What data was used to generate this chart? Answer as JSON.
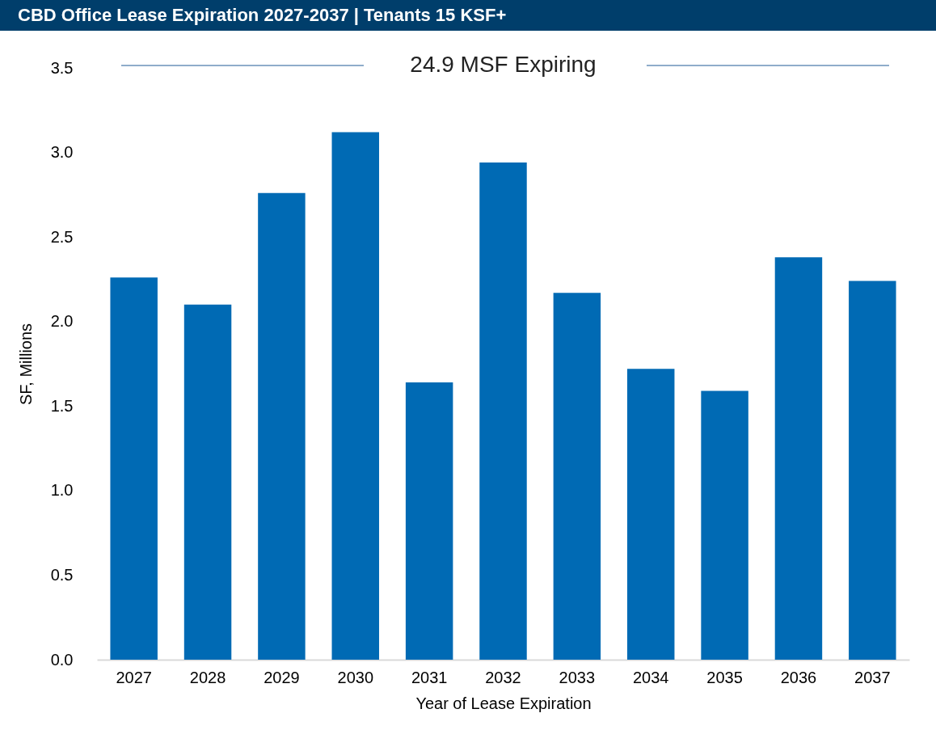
{
  "chart_data": {
    "type": "bar",
    "title": "CBD Office Lease Expiration 2027-2037 | Tenants 15 KSF+",
    "xlabel": "Year of Lease Expiration",
    "ylabel": "SF, Millions",
    "annotations": [
      "24.9 MSF Expiring"
    ],
    "categories": [
      "2027",
      "2028",
      "2029",
      "2030",
      "2031",
      "2032",
      "2033",
      "2034",
      "2035",
      "2036",
      "2037"
    ],
    "values": [
      2.26,
      2.1,
      2.76,
      3.12,
      1.64,
      2.94,
      2.17,
      1.72,
      1.59,
      2.38,
      2.24
    ],
    "color": "#006ab4",
    "ylim": [
      0,
      3.5
    ],
    "yticks": [
      {
        "value": 0,
        "label": "0.0"
      },
      {
        "value": 0.5,
        "label": "0.5"
      },
      {
        "value": 1,
        "label": "1.0"
      },
      {
        "value": 1.5,
        "label": "1.5"
      },
      {
        "value": 2,
        "label": "2.0"
      },
      {
        "value": 2.5,
        "label": "2.5"
      },
      {
        "value": 3,
        "label": "3.0"
      },
      {
        "value": 3.5,
        "label": "3.5"
      }
    ],
    "grid": false
  }
}
